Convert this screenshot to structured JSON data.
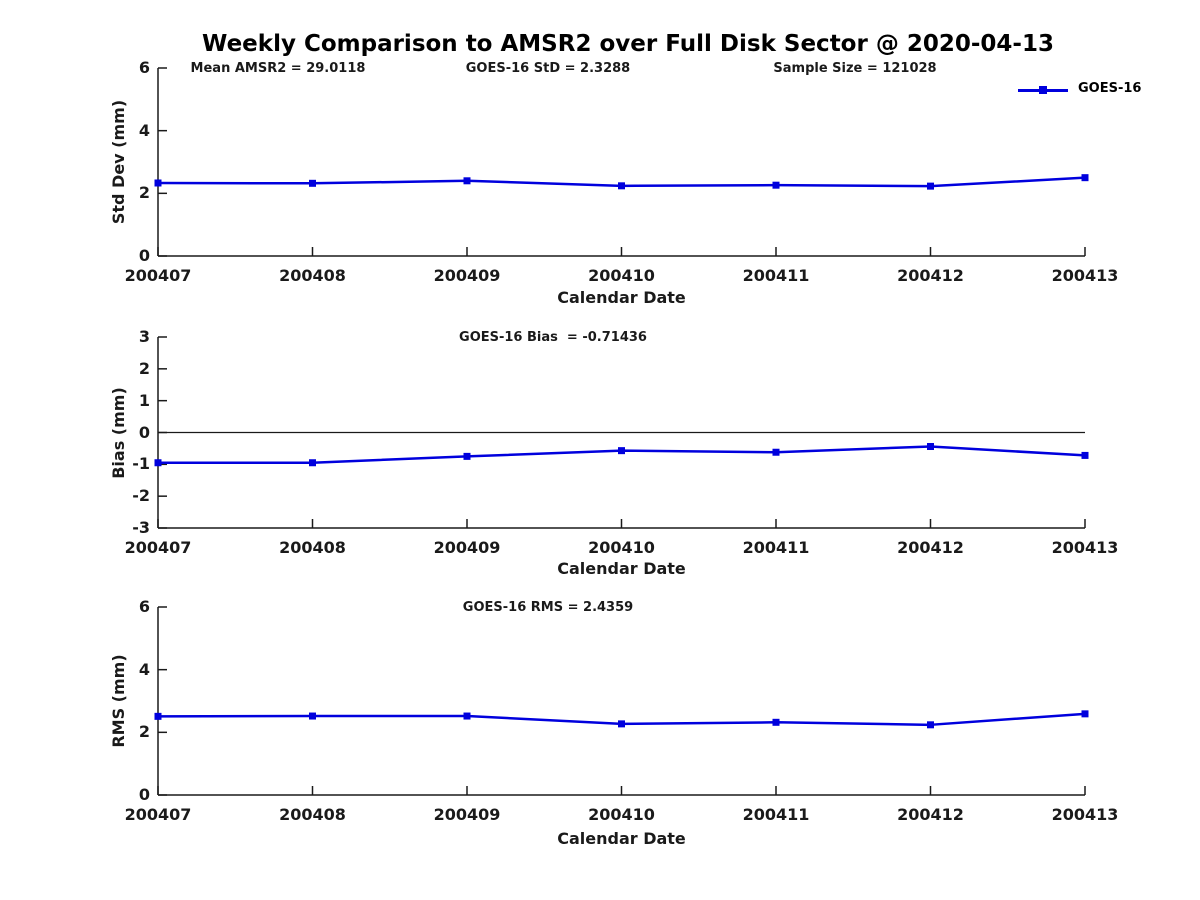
{
  "title": "Weekly Comparison to AMSR2 over Full Disk Sector @ 2020-04-13",
  "legend": {
    "label": "GOES-16",
    "color": "#0000dd"
  },
  "chart_data": [
    {
      "type": "line",
      "title": "",
      "xlabel": "Calendar Date",
      "ylabel": "Std Dev (mm)",
      "categories": [
        "200407",
        "200408",
        "200409",
        "200410",
        "200411",
        "200412",
        "200413"
      ],
      "series": [
        {
          "name": "GOES-16",
          "color": "#0000dd",
          "marker": "square",
          "values": [
            2.33,
            2.32,
            2.4,
            2.24,
            2.26,
            2.23,
            2.5
          ]
        }
      ],
      "ylim": [
        0,
        6
      ],
      "yticks": [
        0,
        2,
        4,
        6
      ],
      "grid": false,
      "legend_position": "top-right",
      "annotations": [
        "Mean AMSR2 = 29.0118",
        "GOES-16 StD = 2.3288",
        "Sample Size = 121028"
      ]
    },
    {
      "type": "line",
      "title": "",
      "xlabel": "Calendar Date",
      "ylabel": "Bias (mm)",
      "categories": [
        "200407",
        "200408",
        "200409",
        "200410",
        "200411",
        "200412",
        "200413"
      ],
      "series": [
        {
          "name": "GOES-16",
          "color": "#0000dd",
          "marker": "square",
          "values": [
            -0.95,
            -0.95,
            -0.75,
            -0.57,
            -0.62,
            -0.44,
            -0.72
          ]
        }
      ],
      "ylim": [
        -3,
        3
      ],
      "yticks": [
        3,
        2,
        1,
        0,
        -1,
        -2,
        -3
      ],
      "zero_line": true,
      "grid": false,
      "annotations": [
        "GOES-16 Bias  = -0.71436"
      ]
    },
    {
      "type": "line",
      "title": "",
      "xlabel": "Calendar Date",
      "ylabel": "RMS (mm)",
      "categories": [
        "200407",
        "200408",
        "200409",
        "200410",
        "200411",
        "200412",
        "200413"
      ],
      "series": [
        {
          "name": "GOES-16",
          "color": "#0000dd",
          "marker": "square",
          "values": [
            2.51,
            2.52,
            2.52,
            2.27,
            2.32,
            2.24,
            2.59
          ]
        }
      ],
      "ylim": [
        0,
        6
      ],
      "yticks": [
        0,
        2,
        4,
        6
      ],
      "grid": false,
      "annotations": [
        "GOES-16 RMS = 2.4359"
      ]
    }
  ]
}
